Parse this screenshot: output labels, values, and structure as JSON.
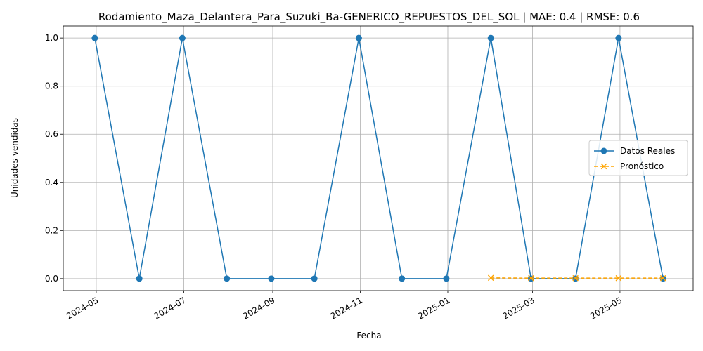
{
  "chart_data": {
    "type": "line",
    "title": "Rodamiento_Maza_Delantera_Para_Suzuki_Ba-GENERICO_REPUESTOS_DEL_SOL | MAE: 0.4 | RMSE: 0.6",
    "xlabel": "Fecha",
    "ylabel": "Unidades vendidas",
    "xlim": [
      "2024-04-08",
      "2025-06-21"
    ],
    "ylim": [
      -0.05,
      1.05
    ],
    "x_ticks": [
      "2024-05",
      "2024-07",
      "2024-09",
      "2024-11",
      "2025-01",
      "2025-03",
      "2025-05"
    ],
    "x_tick_dates": [
      "2024-05-01",
      "2024-07-01",
      "2024-09-01",
      "2024-11-01",
      "2025-01-01",
      "2025-03-01",
      "2025-05-01"
    ],
    "y_ticks": [
      "0.0",
      "0.2",
      "0.4",
      "0.6",
      "0.8",
      "1.0"
    ],
    "y_tick_values": [
      0.0,
      0.2,
      0.4,
      0.6,
      0.8,
      1.0
    ],
    "grid": true,
    "legend_position": "center-right",
    "series": [
      {
        "name": "Datos Reales",
        "color": "#1f77b4",
        "marker": "circle",
        "linestyle": "solid",
        "points": [
          {
            "x": "2024-04-30",
            "y": 1
          },
          {
            "x": "2024-05-31",
            "y": 0
          },
          {
            "x": "2024-06-30",
            "y": 1
          },
          {
            "x": "2024-07-31",
            "y": 0
          },
          {
            "x": "2024-08-31",
            "y": 0
          },
          {
            "x": "2024-09-30",
            "y": 0
          },
          {
            "x": "2024-10-31",
            "y": 1
          },
          {
            "x": "2024-11-30",
            "y": 0
          },
          {
            "x": "2024-12-31",
            "y": 0
          },
          {
            "x": "2025-01-31",
            "y": 1
          },
          {
            "x": "2025-02-28",
            "y": 0
          },
          {
            "x": "2025-03-31",
            "y": 0
          },
          {
            "x": "2025-04-30",
            "y": 1
          },
          {
            "x": "2025-05-31",
            "y": 0
          }
        ]
      },
      {
        "name": "Pronóstico",
        "color": "#ffa500",
        "marker": "x",
        "linestyle": "dashed",
        "points": [
          {
            "x": "2025-01-31",
            "y": 0.003
          },
          {
            "x": "2025-02-28",
            "y": 0.002
          },
          {
            "x": "2025-03-31",
            "y": 0.002
          },
          {
            "x": "2025-04-30",
            "y": 0.002
          },
          {
            "x": "2025-05-31",
            "y": 0.002
          }
        ]
      }
    ]
  }
}
